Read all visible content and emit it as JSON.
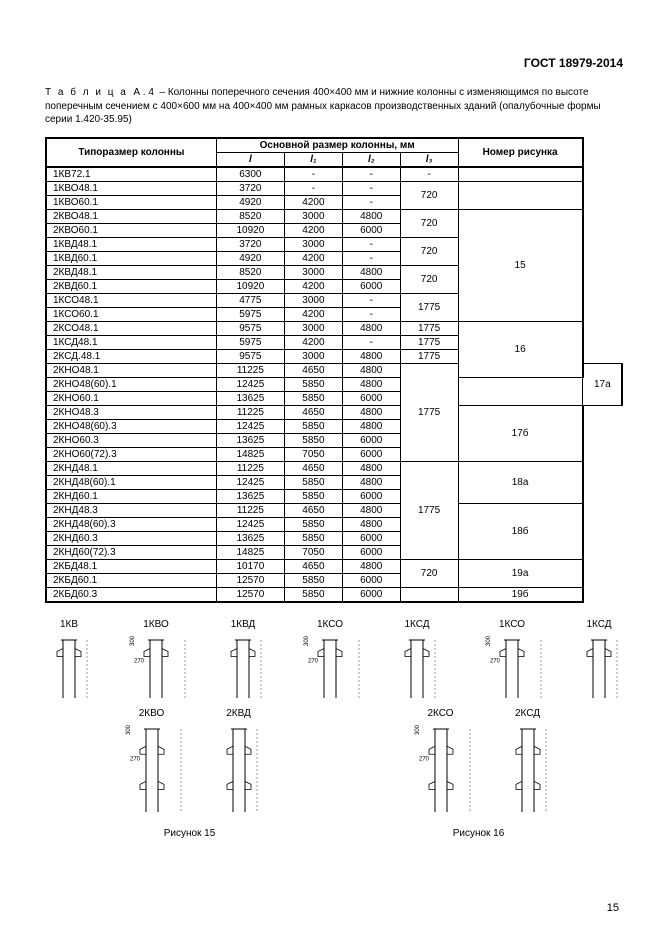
{
  "header": "ГОСТ 18979-2014",
  "caption_prefix": "Т а б л и ц а",
  "caption_num": "А . 4",
  "caption_text": "– Колонны поперечного сечения 400×400 мм и нижние колонны с изменяющимся по высоте поперечным сечением с 400×600 мм на 400×400 мм рамных каркасов производственных зданий (опалубочные формы серии 1.420-35.95)",
  "col_headers": {
    "type": "Типоразмер колонны",
    "main": "Основной размер колонны, мм",
    "l": "l",
    "l1": "l₁",
    "l2": "l₂",
    "l3": "l₃",
    "fig": "Номер рисунка"
  },
  "groups": [
    {
      "rows": [
        {
          "t": "1КВ72.1",
          "l": "6300",
          "l1": "-",
          "l2": "-",
          "l3": "-"
        }
      ],
      "fig": "",
      "thicktop": true
    },
    {
      "rows": [
        {
          "t": "1КВО48.1",
          "l": "3720",
          "l1": "-",
          "l2": "-"
        },
        {
          "t": "1КВО60.1",
          "l": "4920",
          "l1": "4200",
          "l2": "-"
        }
      ],
      "l3": "720",
      "fig": ""
    },
    {
      "rows": [
        {
          "t": "2КВО48.1",
          "l": "8520",
          "l1": "3000",
          "l2": "4800"
        },
        {
          "t": "2КВО60.1",
          "l": "10920",
          "l1": "4200",
          "l2": "6000"
        }
      ],
      "l3": "720",
      "fig": "15",
      "figspan": 8
    },
    {
      "rows": [
        {
          "t": "1КВД48.1",
          "l": "3720",
          "l1": "3000",
          "l2": "-"
        },
        {
          "t": "1КВД60.1",
          "l": "4920",
          "l1": "4200",
          "l2": "-"
        }
      ],
      "l3": "720"
    },
    {
      "rows": [
        {
          "t": "2КВД48.1",
          "l": "8520",
          "l1": "3000",
          "l2": "4800"
        },
        {
          "t": "2КВД60.1",
          "l": "10920",
          "l1": "4200",
          "l2": "6000"
        }
      ],
      "l3": "720"
    },
    {
      "rows": [
        {
          "t": "1КСО48.1",
          "l": "4775",
          "l1": "3000",
          "l2": "-"
        },
        {
          "t": "1КСО60.1",
          "l": "5975",
          "l1": "4200",
          "l2": "-"
        }
      ],
      "l3": "1775"
    },
    {
      "rows": [
        {
          "t": "2КСО48.1",
          "l": "9575",
          "l1": "3000",
          "l2": "4800"
        }
      ],
      "l3": "1775",
      "fig": "16",
      "figspan": 4
    },
    {
      "rows": [
        {
          "t": "1КСД48.1",
          "l": "5975",
          "l1": "4200",
          "l2": "-"
        }
      ],
      "l3": "1775"
    },
    {
      "rows": [
        {
          "t": "2КСД.48.1",
          "l": "9575",
          "l1": "3000",
          "l2": "4800"
        }
      ],
      "l3": "1775"
    },
    {
      "rows": [
        {
          "t": "2КНО48.1",
          "l": "11225",
          "l1": "4650",
          "l2": "4800"
        },
        {
          "t": "2КНО48(60).1",
          "l": "12425",
          "l1": "5850",
          "l2": "4800"
        },
        {
          "t": "2КНО60.1",
          "l": "13625",
          "l1": "5850",
          "l2": "6000"
        },
        {
          "t": "2КНО48.3",
          "l": "11225",
          "l1": "4650",
          "l2": "4800"
        },
        {
          "t": "2КНО48(60).3",
          "l": "12425",
          "l1": "5850",
          "l2": "4800"
        },
        {
          "t": "2КНО60.3",
          "l": "13625",
          "l1": "5850",
          "l2": "6000"
        },
        {
          "t": "2КНО60(72).3",
          "l": "14825",
          "l1": "7050",
          "l2": "6000"
        }
      ],
      "l3": "1775",
      "figs": [
        {
          "label": "17а",
          "span": 3
        },
        {
          "label": "17б",
          "span": 4
        }
      ]
    },
    {
      "rows": [
        {
          "t": "2КНД48.1",
          "l": "11225",
          "l1": "4650",
          "l2": "4800"
        },
        {
          "t": "2КНД48(60).1",
          "l": "12425",
          "l1": "5850",
          "l2": "4800"
        },
        {
          "t": "2КНД60.1",
          "l": "13625",
          "l1": "5850",
          "l2": "6000"
        },
        {
          "t": "2КНД48.3",
          "l": "11225",
          "l1": "4650",
          "l2": "4800"
        },
        {
          "t": "2КНД48(60).3",
          "l": "12425",
          "l1": "5850",
          "l2": "4800"
        },
        {
          "t": "2КНД60.3",
          "l": "13625",
          "l1": "5850",
          "l2": "6000"
        },
        {
          "t": "2КНД60(72).3",
          "l": "14825",
          "l1": "7050",
          "l2": "6000"
        }
      ],
      "l3": "1775",
      "figs": [
        {
          "label": "18а",
          "span": 3
        },
        {
          "label": "18б",
          "span": 4
        }
      ]
    },
    {
      "rows": [
        {
          "t": "2КБД48.1",
          "l": "10170",
          "l1": "4650",
          "l2": "4800"
        },
        {
          "t": "2КБД60.1",
          "l": "12570",
          "l1": "5850",
          "l2": "6000"
        },
        {
          "t": "2КБД60.3",
          "l": "12570",
          "l1": "5850",
          "l2": "6000"
        }
      ],
      "l3": "720",
      "l3span": 2,
      "figs": [
        {
          "label": "19а",
          "span": 2
        },
        {
          "label": "19б",
          "span": 1
        }
      ],
      "thickbottom": true
    }
  ],
  "diagrams": {
    "row1": [
      "1КВ",
      "1КВО",
      "1КВД",
      "1КСО",
      "1КСД"
    ],
    "row2": [
      "2КВО",
      "2КВД",
      "2КСО",
      "2КСД"
    ],
    "fig15": "Рисунок  15",
    "fig16": "Рисунок  16"
  },
  "page_number": "15",
  "dash": "-",
  "dim270": "270",
  "dim300": "300"
}
